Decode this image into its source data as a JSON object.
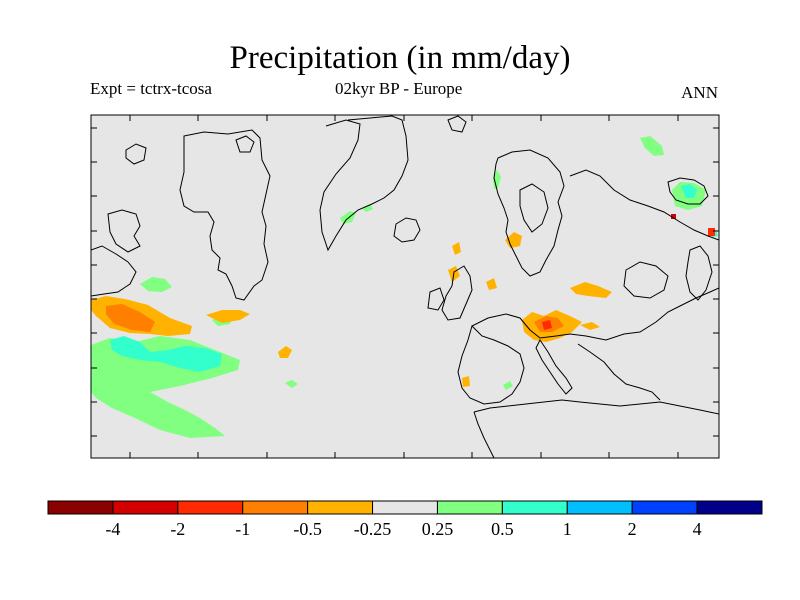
{
  "title": "Precipitation (in mm/day)",
  "experiment_label": "Expt = tctrx-tcosa",
  "period_label": "02kyr BP - Europe",
  "season_label": "ANN",
  "colors": {
    "map_background": "#e6e6e6",
    "coastline": "#000000"
  },
  "colorbar": {
    "boundaries": [
      "-4",
      "-2",
      "-1",
      "-0.5",
      "-0.25",
      "0.25",
      "0.5",
      "1",
      "2",
      "4"
    ],
    "colors": [
      "#8b0000",
      "#d40000",
      "#ff2a00",
      "#ff7f00",
      "#ffb300",
      "#e6e6e6",
      "#80ff80",
      "#33ffcc",
      "#00bfff",
      "#0040ff",
      "#00008b"
    ]
  },
  "chart_data": {
    "type": "heatmap",
    "title": "Precipitation (in mm/day)",
    "variable": "Precipitation",
    "units": "mm/day",
    "experiment": "Expt = tctrx-tcosa",
    "period": "02kyr BP - Europe",
    "season": "ANN",
    "region": "Europe",
    "color_levels": [
      -4,
      -2,
      -1,
      -0.5,
      -0.25,
      0.25,
      0.5,
      1,
      2,
      4
    ],
    "legend_placement": "bottom"
  }
}
